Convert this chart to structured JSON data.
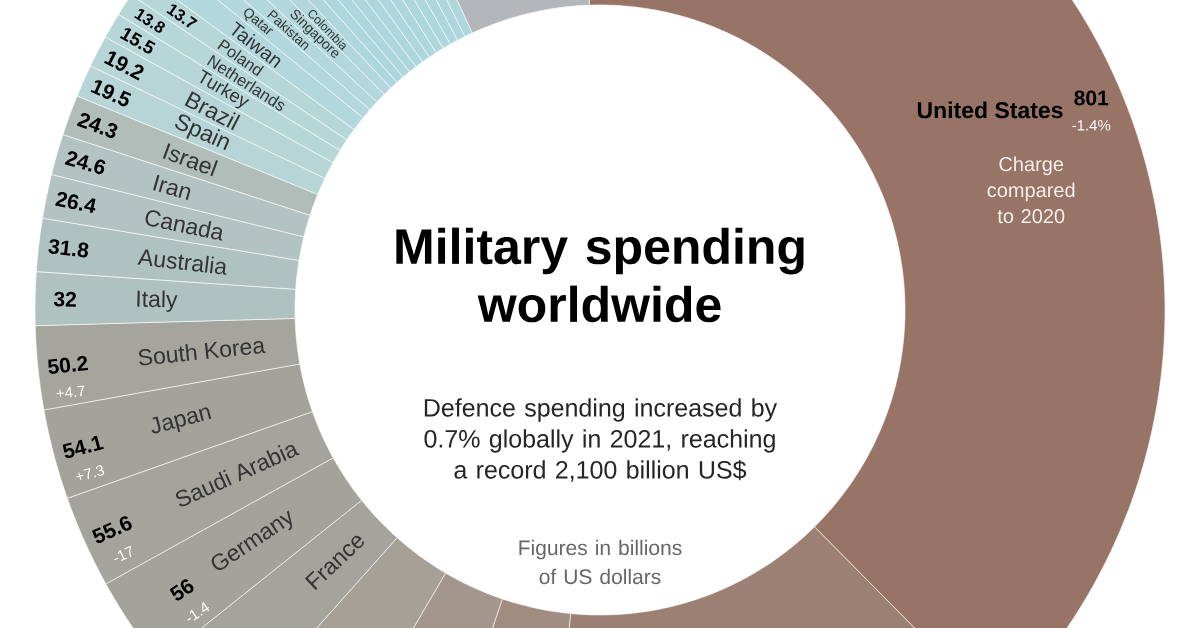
{
  "chart_data": {
    "type": "donut",
    "title": "Military spending worldwide",
    "subtitle": "Defence spending increased by 0.7% globally in 2021, reaching a record 2,100 billion US$",
    "categories": [
      "United States",
      null,
      null,
      null,
      null,
      "France",
      "Germany",
      "Saudi Arabia",
      "Japan",
      "South Korea",
      "Italy",
      "Australia",
      "Canada",
      "Iran",
      "Israel",
      "Spain",
      "Brazil",
      "Turkey",
      "Netherlands",
      "Poland",
      "Taiwan",
      "Qatar",
      "Pakistan",
      "Singapore",
      "Colombia",
      null,
      null,
      null,
      null,
      null,
      null,
      null,
      null,
      null,
      null,
      null,
      null,
      null
    ],
    "values": [
      801,
      293,
      76.6,
      68.4,
      65.9,
      56.6,
      56,
      55.6,
      54.1,
      50.2,
      32,
      31.8,
      26.4,
      24.6,
      24.3,
      19.5,
      19.2,
      15.5,
      13.8,
      13.7,
      16.3,
      11.6,
      11.3,
      11.7,
      10.2,
      9,
      9,
      9,
      9,
      9,
      9,
      9,
      9,
      9,
      9,
      9,
      9,
      132.7
    ],
    "value_labels": [
      "801",
      null,
      null,
      null,
      null,
      null,
      "56",
      "55.6",
      "54.1",
      "50.2",
      "32",
      "31.8",
      "26.4",
      "24.6",
      "24.3",
      "19.5",
      "19.2",
      "15.5",
      "13.8",
      "13.7",
      null,
      null,
      null,
      null,
      null,
      null,
      null,
      null,
      null,
      null,
      null,
      null,
      null,
      null,
      null,
      null,
      null,
      null
    ],
    "colors": [
      "#977466",
      "#9c8073",
      "#a08c80",
      "#a3968c",
      "#a7a097",
      "#a5a49c",
      "#a4a39b",
      "#a4a39c",
      "#a3a39b",
      "#a5a59d",
      "#b0c2c0",
      "#b0c2c0",
      "#b2c3c1",
      "#b2c3c1",
      "#b1bdb9",
      "#b7d4d6",
      "#b7d4d6",
      "#b7d6d8",
      "#b7d6d8",
      "#b7d6d8",
      "#b2d7dc",
      "#b2d7dc",
      "#b2d7dc",
      "#b2d7dc",
      "#b2d7dc",
      "#add7dd",
      "#add7dd",
      "#add7dd",
      "#add7dd",
      "#add7dd",
      "#add7dd",
      "#add7dd",
      "#add7dd",
      "#add7dd",
      "#add7dd",
      "#add7dd",
      "#add7dd",
      "#b3b7ba"
    ],
    "annotations": [
      "Figures in billions of US dollars",
      "Charge compared to 2020",
      {
        "text": "-1.4%",
        "x": "United States"
      },
      {
        "text": "+4.7",
        "x": "South Korea"
      },
      {
        "text": "+7.3",
        "x": "Japan"
      },
      {
        "text": "-17",
        "x": "Saudi Arabia"
      },
      {
        "text": "-1.4",
        "x": "Germany"
      }
    ]
  }
}
